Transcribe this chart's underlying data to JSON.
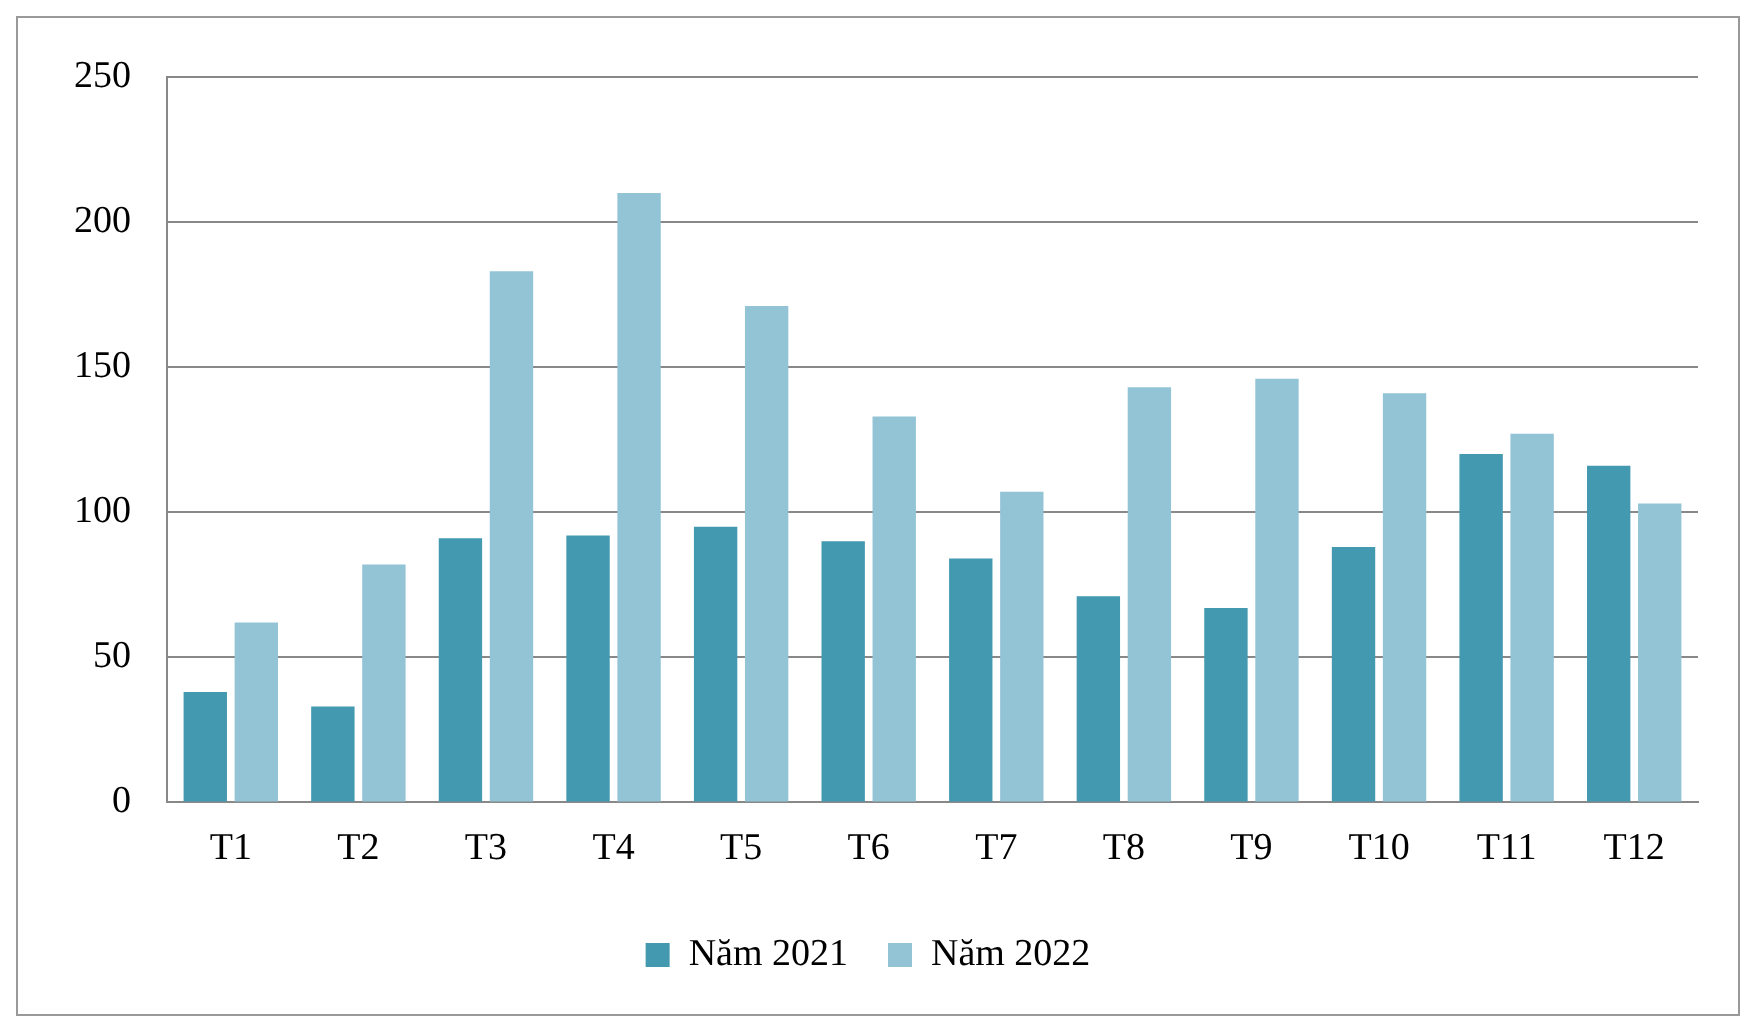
{
  "chart_data": {
    "type": "bar",
    "categories": [
      "T1",
      "T2",
      "T3",
      "T4",
      "T5",
      "T6",
      "T7",
      "T8",
      "T9",
      "T10",
      "T11",
      "T12"
    ],
    "series": [
      {
        "name": "Năm 2021",
        "color": "#4299b0",
        "values": [
          38,
          33,
          91,
          92,
          95,
          90,
          84,
          71,
          67,
          88,
          120,
          116
        ]
      },
      {
        "name": "Năm 2022",
        "color": "#93c4d6",
        "values": [
          62,
          82,
          183,
          210,
          171,
          133,
          107,
          143,
          146,
          141,
          127,
          103
        ]
      }
    ],
    "ylim": [
      0,
      250
    ],
    "yticks": [
      0,
      50,
      100,
      150,
      200,
      250
    ],
    "grid": "y",
    "legend": "bottom"
  }
}
